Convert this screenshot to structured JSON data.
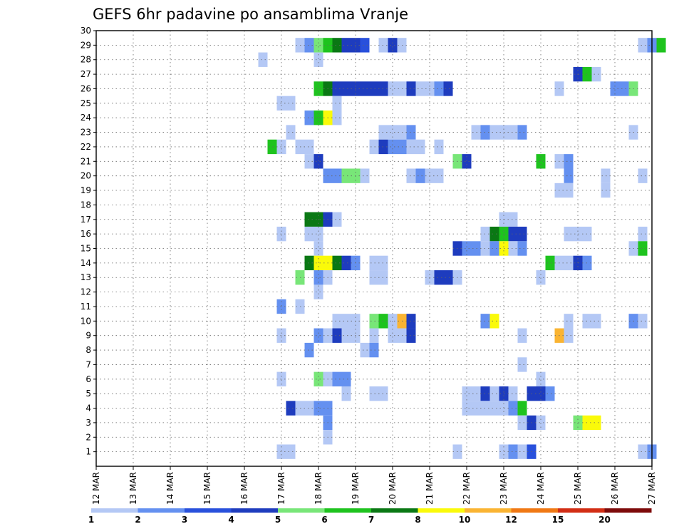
{
  "chart_data": {
    "type": "heatmap",
    "title": "GEFS 6hr padavine po ansamblima Vranje",
    "xlabel": "",
    "ylabel": "",
    "y_ticks": [
      "1",
      "2",
      "3",
      "4",
      "5",
      "6",
      "7",
      "8",
      "9",
      "10",
      "11",
      "12",
      "13",
      "14",
      "15",
      "16",
      "17",
      "18",
      "19",
      "20",
      "21",
      "22",
      "23",
      "24",
      "25",
      "26",
      "27",
      "28",
      "29",
      "30"
    ],
    "x_ticks": [
      "12 MAR",
      "13 MAR",
      "14 MAR",
      "15 MAR",
      "16 MAR",
      "17 MAR",
      "18 MAR",
      "19 MAR",
      "20 MAR",
      "21 MAR",
      "22 MAR",
      "23 MAR",
      "24 MAR",
      "25 MAR",
      "26 MAR",
      "27 MAR"
    ],
    "x_range_days": [
      12,
      27
    ],
    "y_range": [
      0,
      30
    ],
    "grid": true,
    "legend": {
      "position": "bottom",
      "labels": [
        "1",
        "2",
        "3",
        "4",
        "5",
        "6",
        "7",
        "8",
        "10",
        "12",
        "15",
        "20"
      ],
      "colors": [
        "#b4c8f5",
        "#6490f0",
        "#2850dc",
        "#1e3cbe",
        "#78e678",
        "#1ec31e",
        "#0a7814",
        "#fafa0a",
        "#fab432",
        "#f07814",
        "#d22d14",
        "#7d0a0a"
      ]
    },
    "level_colors": [
      "#b4c8f5",
      "#6490f0",
      "#2850dc",
      "#1e3cbe",
      "#78e678",
      "#1ec31e",
      "#0a7814",
      "#fafa0a",
      "#fab432",
      "#f07814",
      "#d22d14",
      "#7d0a0a"
    ],
    "cells": [
      [
        29,
        17.5,
        0
      ],
      [
        29,
        17.75,
        1
      ],
      [
        29,
        18.0,
        4
      ],
      [
        29,
        18.25,
        5
      ],
      [
        29,
        18.5,
        6
      ],
      [
        29,
        18.75,
        3
      ],
      [
        29,
        19.0,
        3
      ],
      [
        29,
        19.25,
        2
      ],
      [
        29,
        19.75,
        0
      ],
      [
        29,
        20.0,
        3
      ],
      [
        29,
        20.25,
        0
      ],
      [
        29,
        26.75,
        0
      ],
      [
        29,
        27.0,
        1
      ],
      [
        29,
        27.25,
        5
      ],
      [
        28,
        16.5,
        0
      ],
      [
        28,
        18.0,
        0
      ],
      [
        27,
        25.0,
        3
      ],
      [
        27,
        25.25,
        5
      ],
      [
        27,
        25.5,
        0
      ],
      [
        26,
        18.0,
        5
      ],
      [
        26,
        18.25,
        6
      ],
      [
        26,
        18.5,
        3
      ],
      [
        26,
        18.75,
        3
      ],
      [
        26,
        19.0,
        3
      ],
      [
        26,
        19.25,
        3
      ],
      [
        26,
        19.5,
        3
      ],
      [
        26,
        19.75,
        3
      ],
      [
        26,
        20.0,
        0
      ],
      [
        26,
        20.25,
        0
      ],
      [
        26,
        20.5,
        3
      ],
      [
        26,
        20.75,
        0
      ],
      [
        26,
        21.0,
        0
      ],
      [
        26,
        21.25,
        1
      ],
      [
        26,
        21.5,
        3
      ],
      [
        26,
        24.5,
        0
      ],
      [
        26,
        26.0,
        1
      ],
      [
        26,
        26.25,
        1
      ],
      [
        26,
        26.5,
        4
      ],
      [
        25,
        17.0,
        0
      ],
      [
        25,
        17.25,
        0
      ],
      [
        25,
        18.5,
        0
      ],
      [
        24,
        17.75,
        1
      ],
      [
        24,
        18.0,
        5
      ],
      [
        24,
        18.25,
        7
      ],
      [
        24,
        18.5,
        0
      ],
      [
        23,
        17.25,
        0
      ],
      [
        23,
        19.75,
        0
      ],
      [
        23,
        20.0,
        0
      ],
      [
        23,
        20.25,
        0
      ],
      [
        23,
        20.5,
        1
      ],
      [
        23,
        22.25,
        0
      ],
      [
        23,
        22.5,
        1
      ],
      [
        23,
        22.75,
        0
      ],
      [
        23,
        23.0,
        0
      ],
      [
        23,
        23.25,
        0
      ],
      [
        23,
        23.5,
        1
      ],
      [
        23,
        26.5,
        0
      ],
      [
        22,
        16.75,
        5
      ],
      [
        22,
        17.0,
        0
      ],
      [
        22,
        17.5,
        0
      ],
      [
        22,
        17.75,
        0
      ],
      [
        22,
        19.5,
        0
      ],
      [
        22,
        19.75,
        3
      ],
      [
        22,
        20.0,
        1
      ],
      [
        22,
        20.25,
        1
      ],
      [
        22,
        20.5,
        0
      ],
      [
        22,
        20.75,
        0
      ],
      [
        22,
        21.25,
        0
      ],
      [
        21,
        17.75,
        0
      ],
      [
        21,
        18.0,
        3
      ],
      [
        21,
        21.75,
        4
      ],
      [
        21,
        22.0,
        3
      ],
      [
        21,
        24.0,
        5
      ],
      [
        21,
        24.5,
        0
      ],
      [
        21,
        24.75,
        1
      ],
      [
        20,
        18.25,
        1
      ],
      [
        20,
        18.5,
        1
      ],
      [
        20,
        18.75,
        4
      ],
      [
        20,
        19.0,
        4
      ],
      [
        20,
        19.25,
        0
      ],
      [
        20,
        20.5,
        0
      ],
      [
        20,
        20.75,
        1
      ],
      [
        20,
        21.0,
        0
      ],
      [
        20,
        21.25,
        0
      ],
      [
        20,
        24.75,
        1
      ],
      [
        20,
        25.75,
        0
      ],
      [
        20,
        26.75,
        0
      ],
      [
        19,
        24.5,
        0
      ],
      [
        19,
        24.75,
        0
      ],
      [
        19,
        25.75,
        0
      ],
      [
        17,
        17.75,
        6
      ],
      [
        17,
        18.0,
        6
      ],
      [
        17,
        18.25,
        3
      ],
      [
        17,
        18.5,
        0
      ],
      [
        17,
        23.0,
        0
      ],
      [
        17,
        23.25,
        0
      ],
      [
        16,
        17.0,
        0
      ],
      [
        16,
        17.75,
        0
      ],
      [
        16,
        18.0,
        0
      ],
      [
        16,
        22.5,
        0
      ],
      [
        16,
        22.75,
        6
      ],
      [
        16,
        23.0,
        5
      ],
      [
        16,
        23.25,
        3
      ],
      [
        16,
        23.5,
        3
      ],
      [
        16,
        24.75,
        0
      ],
      [
        16,
        25.0,
        0
      ],
      [
        16,
        25.25,
        0
      ],
      [
        16,
        26.75,
        0
      ],
      [
        15,
        18.0,
        0
      ],
      [
        15,
        21.75,
        3
      ],
      [
        15,
        22.0,
        1
      ],
      [
        15,
        22.25,
        1
      ],
      [
        15,
        22.5,
        0
      ],
      [
        15,
        22.75,
        1
      ],
      [
        15,
        23.0,
        7
      ],
      [
        15,
        23.25,
        0
      ],
      [
        15,
        23.5,
        1
      ],
      [
        15,
        26.5,
        0
      ],
      [
        15,
        26.75,
        5
      ],
      [
        14,
        17.75,
        6
      ],
      [
        14,
        18.0,
        7
      ],
      [
        14,
        18.25,
        7
      ],
      [
        14,
        18.5,
        6
      ],
      [
        14,
        18.75,
        3
      ],
      [
        14,
        19.0,
        1
      ],
      [
        14,
        19.5,
        0
      ],
      [
        14,
        19.75,
        0
      ],
      [
        14,
        24.25,
        5
      ],
      [
        14,
        24.5,
        0
      ],
      [
        14,
        24.75,
        0
      ],
      [
        14,
        25.0,
        3
      ],
      [
        14,
        25.25,
        1
      ],
      [
        13,
        17.5,
        4
      ],
      [
        13,
        18.0,
        1
      ],
      [
        13,
        18.25,
        0
      ],
      [
        13,
        19.5,
        0
      ],
      [
        13,
        19.75,
        0
      ],
      [
        13,
        21.0,
        0
      ],
      [
        13,
        21.25,
        3
      ],
      [
        13,
        21.5,
        3
      ],
      [
        13,
        21.75,
        0
      ],
      [
        13,
        24.0,
        0
      ],
      [
        12,
        18.0,
        0
      ],
      [
        11,
        17.0,
        1
      ],
      [
        11,
        17.5,
        0
      ],
      [
        10,
        18.5,
        0
      ],
      [
        10,
        18.75,
        0
      ],
      [
        10,
        19.0,
        0
      ],
      [
        10,
        19.5,
        4
      ],
      [
        10,
        19.75,
        5
      ],
      [
        10,
        20.0,
        0
      ],
      [
        10,
        20.25,
        8
      ],
      [
        10,
        20.5,
        3
      ],
      [
        10,
        22.5,
        1
      ],
      [
        10,
        22.75,
        7
      ],
      [
        10,
        24.75,
        0
      ],
      [
        10,
        25.25,
        0
      ],
      [
        10,
        25.5,
        0
      ],
      [
        10,
        26.5,
        1
      ],
      [
        10,
        26.75,
        0
      ],
      [
        9,
        17.0,
        0
      ],
      [
        9,
        18.0,
        1
      ],
      [
        9,
        18.25,
        0
      ],
      [
        9,
        18.5,
        3
      ],
      [
        9,
        18.75,
        0
      ],
      [
        9,
        19.0,
        0
      ],
      [
        9,
        19.5,
        0
      ],
      [
        9,
        20.0,
        0
      ],
      [
        9,
        20.25,
        0
      ],
      [
        9,
        20.5,
        3
      ],
      [
        9,
        23.5,
        0
      ],
      [
        9,
        24.5,
        8
      ],
      [
        9,
        24.75,
        0
      ],
      [
        8,
        17.75,
        1
      ],
      [
        8,
        19.25,
        0
      ],
      [
        8,
        19.5,
        1
      ],
      [
        7,
        23.5,
        0
      ],
      [
        6,
        17.0,
        0
      ],
      [
        6,
        18.0,
        4
      ],
      [
        6,
        18.25,
        0
      ],
      [
        6,
        18.5,
        1
      ],
      [
        6,
        18.75,
        1
      ],
      [
        6,
        24.0,
        0
      ],
      [
        5,
        18.75,
        0
      ],
      [
        5,
        19.5,
        0
      ],
      [
        5,
        19.75,
        0
      ],
      [
        5,
        22.0,
        0
      ],
      [
        5,
        22.25,
        0
      ],
      [
        5,
        22.5,
        3
      ],
      [
        5,
        22.75,
        0
      ],
      [
        5,
        23.0,
        3
      ],
      [
        5,
        23.25,
        0
      ],
      [
        5,
        23.75,
        3
      ],
      [
        5,
        24.0,
        3
      ],
      [
        5,
        24.25,
        1
      ],
      [
        4,
        17.25,
        3
      ],
      [
        4,
        17.5,
        0
      ],
      [
        4,
        17.75,
        0
      ],
      [
        4,
        18.0,
        1
      ],
      [
        4,
        18.25,
        1
      ],
      [
        4,
        22.0,
        0
      ],
      [
        4,
        22.25,
        0
      ],
      [
        4,
        22.5,
        0
      ],
      [
        4,
        22.75,
        0
      ],
      [
        4,
        23.0,
        0
      ],
      [
        4,
        23.25,
        1
      ],
      [
        4,
        23.5,
        5
      ],
      [
        3,
        18.25,
        1
      ],
      [
        3,
        23.5,
        0
      ],
      [
        3,
        23.75,
        3
      ],
      [
        3,
        24.0,
        0
      ],
      [
        3,
        25.0,
        4
      ],
      [
        3,
        25.25,
        7
      ],
      [
        3,
        25.5,
        7
      ],
      [
        2,
        18.25,
        0
      ],
      [
        1,
        17.0,
        0
      ],
      [
        1,
        17.25,
        0
      ],
      [
        1,
        21.75,
        0
      ],
      [
        1,
        23.0,
        0
      ],
      [
        1,
        23.25,
        1
      ],
      [
        1,
        23.5,
        0
      ],
      [
        1,
        23.75,
        2
      ],
      [
        1,
        26.75,
        0
      ],
      [
        1,
        27.0,
        1
      ]
    ]
  }
}
